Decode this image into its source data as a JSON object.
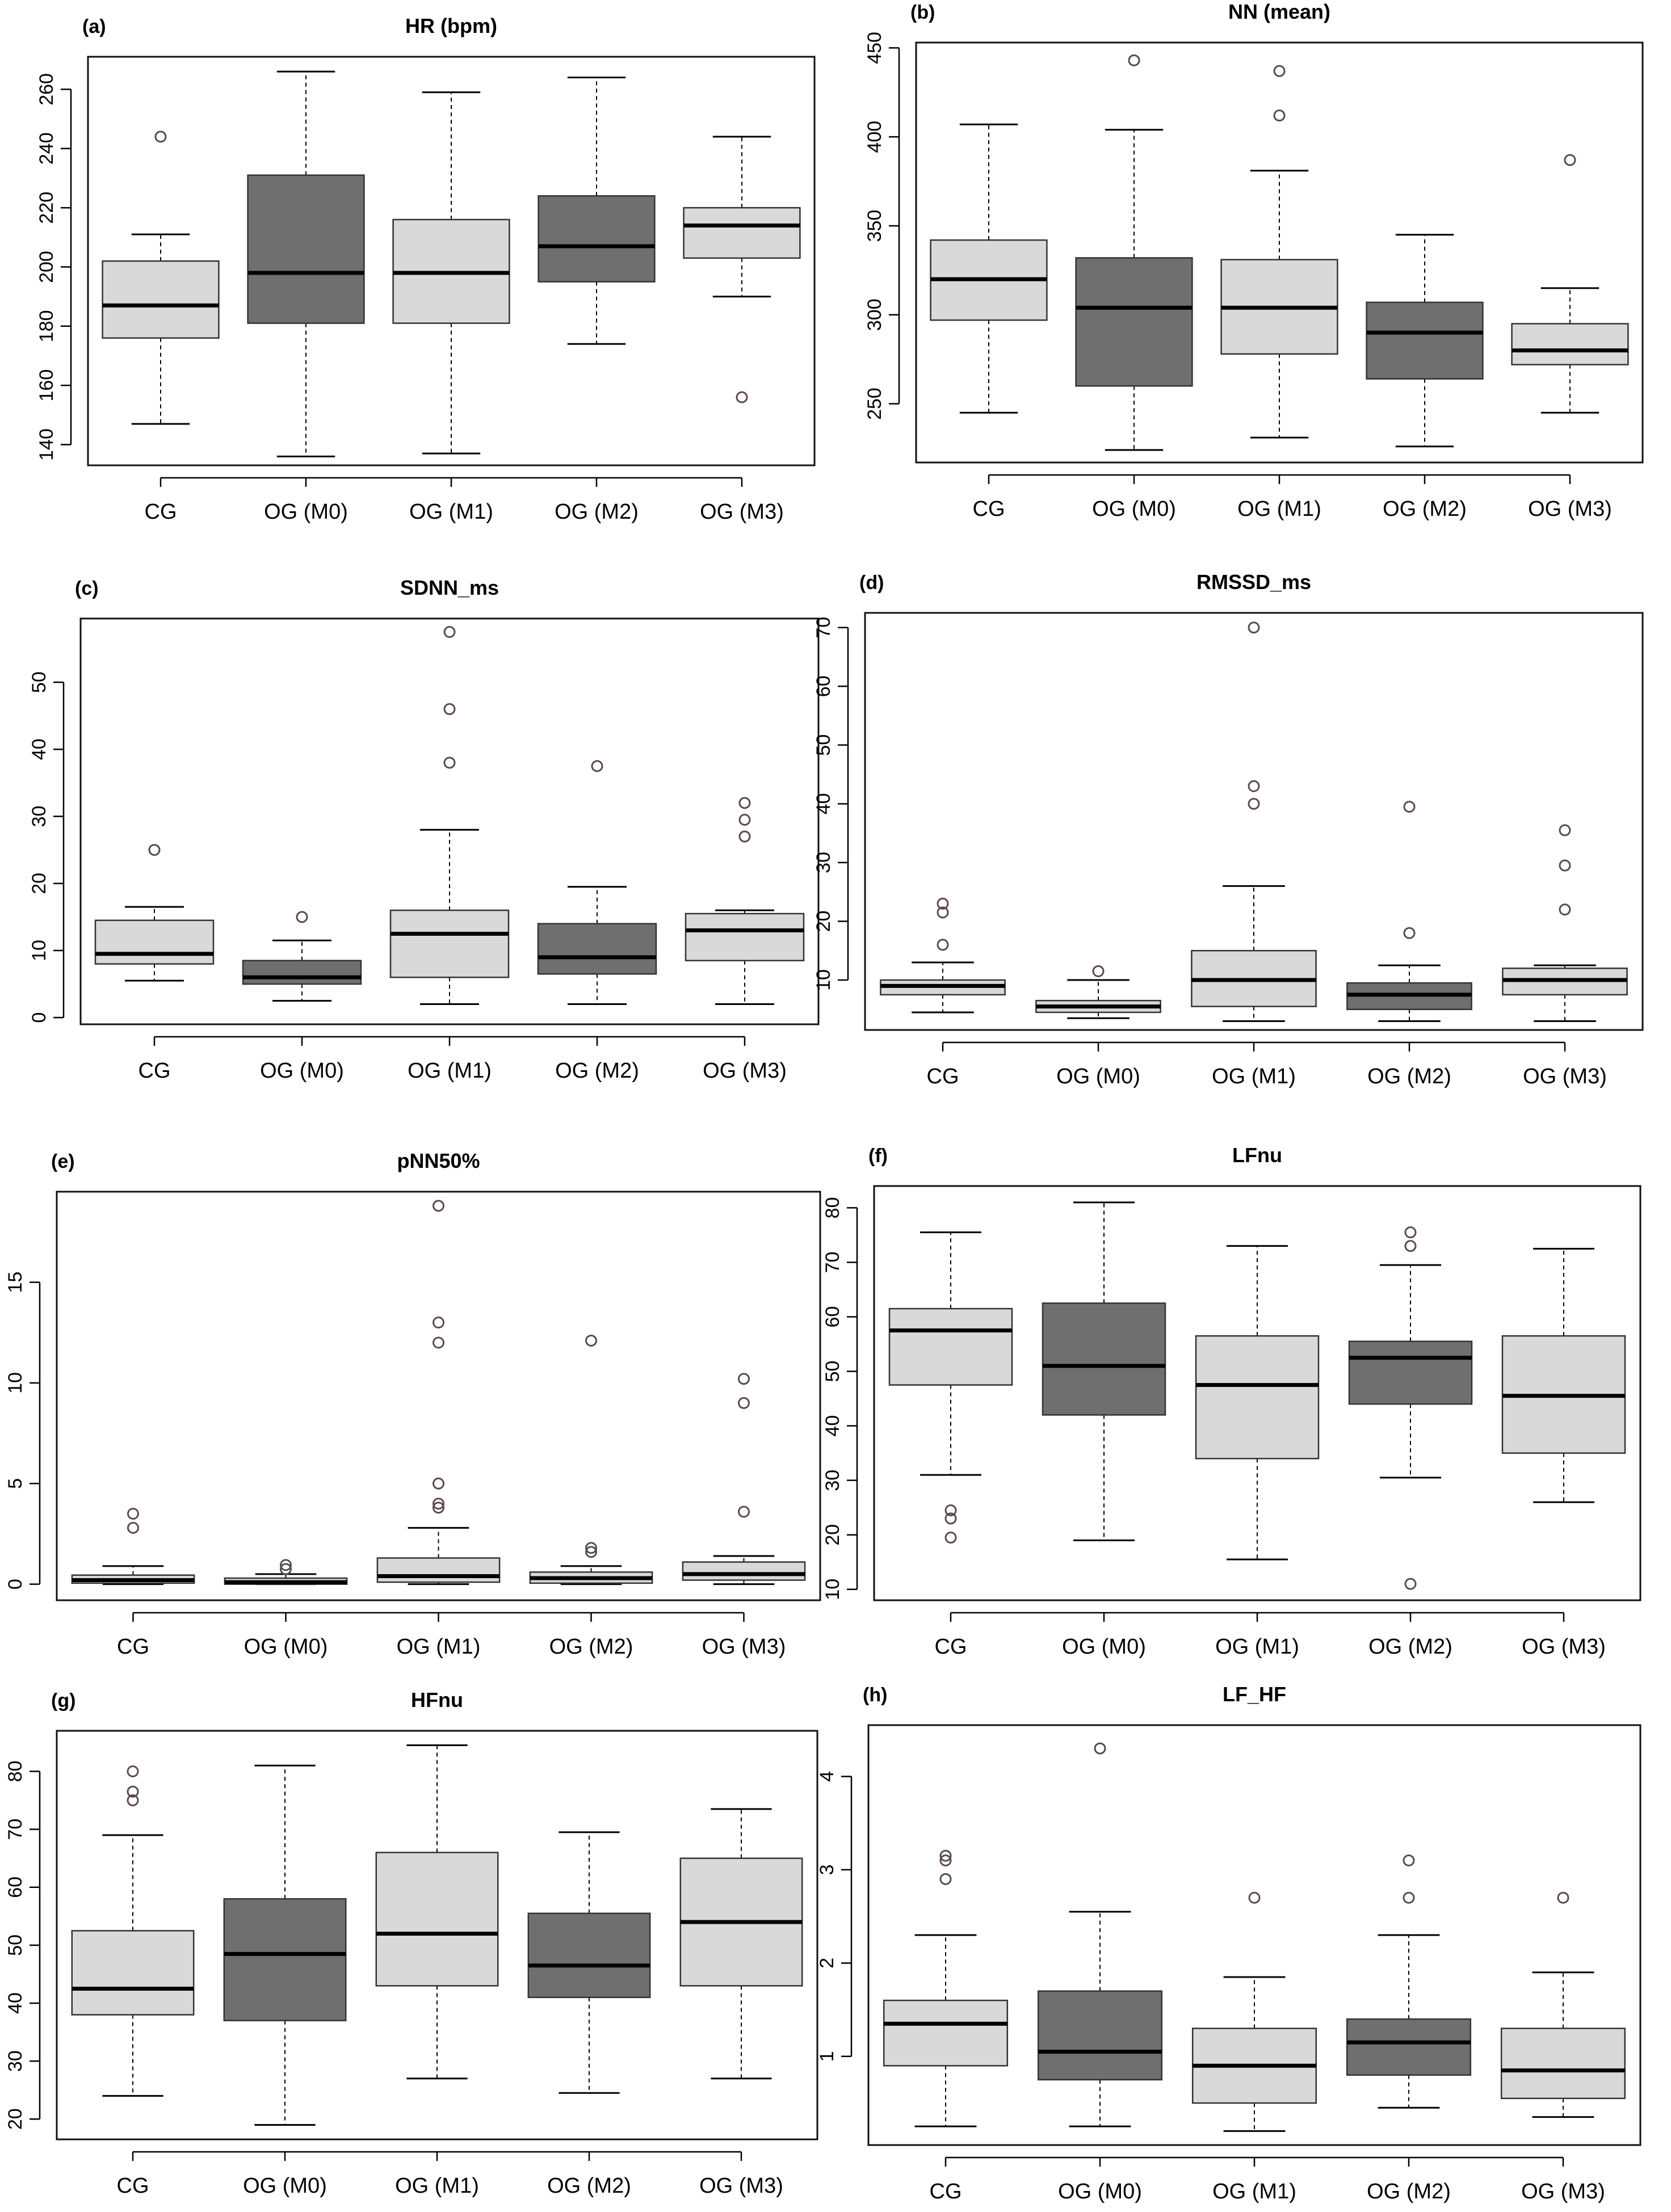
{
  "chart_data": [
    {
      "type": "boxplot",
      "letter": "(a)",
      "title": "HR (bpm)",
      "xlabel": "",
      "ylabel": "",
      "categories": [
        "CG",
        "OG (M0)",
        "OG (M1)",
        "OG (M2)",
        "OG (M3)"
      ],
      "box_shading": [
        "light",
        "dark",
        "light",
        "dark",
        "light"
      ],
      "ylim": [
        133,
        271
      ],
      "yticks": [
        140,
        160,
        180,
        200,
        220,
        240,
        260
      ],
      "boxes": [
        {
          "whisker_low": 147,
          "q1": 176,
          "median": 187,
          "q3": 202,
          "whisker_high": 211,
          "outliers": [
            244
          ]
        },
        {
          "whisker_low": 136,
          "q1": 181,
          "median": 198,
          "q3": 231,
          "whisker_high": 266,
          "outliers": []
        },
        {
          "whisker_low": 137,
          "q1": 181,
          "median": 198,
          "q3": 216,
          "whisker_high": 259,
          "outliers": []
        },
        {
          "whisker_low": 174,
          "q1": 195,
          "median": 207,
          "q3": 224,
          "whisker_high": 264,
          "outliers": []
        },
        {
          "whisker_low": 190,
          "q1": 203,
          "median": 214,
          "q3": 220,
          "whisker_high": 244,
          "outliers": [
            156
          ]
        }
      ]
    },
    {
      "type": "boxplot",
      "letter": "(b)",
      "title": "NN (mean)",
      "xlabel": "",
      "ylabel": "",
      "categories": [
        "CG",
        "OG (M0)",
        "OG (M1)",
        "OG (M2)",
        "OG (M3)"
      ],
      "box_shading": [
        "light",
        "dark",
        "light",
        "dark",
        "light"
      ],
      "ylim": [
        217,
        453
      ],
      "yticks": [
        250,
        300,
        350,
        400,
        450
      ],
      "boxes": [
        {
          "whisker_low": 245,
          "q1": 297,
          "median": 320,
          "q3": 342,
          "whisker_high": 407,
          "outliers": []
        },
        {
          "whisker_low": 224,
          "q1": 260,
          "median": 304,
          "q3": 332,
          "whisker_high": 404,
          "outliers": [
            443
          ]
        },
        {
          "whisker_low": 231,
          "q1": 278,
          "median": 304,
          "q3": 331,
          "whisker_high": 381,
          "outliers": [
            412,
            437
          ]
        },
        {
          "whisker_low": 226,
          "q1": 264,
          "median": 290,
          "q3": 307,
          "whisker_high": 345,
          "outliers": []
        },
        {
          "whisker_low": 245,
          "q1": 272,
          "median": 280,
          "q3": 295,
          "whisker_high": 315,
          "outliers": [
            387
          ]
        }
      ]
    },
    {
      "type": "boxplot",
      "letter": "(c)",
      "title": "SDNN_ms",
      "xlabel": "",
      "ylabel": "",
      "categories": [
        "CG",
        "OG (M0)",
        "OG (M1)",
        "OG (M2)",
        "OG (M3)"
      ],
      "box_shading": [
        "light",
        "dark",
        "light",
        "dark",
        "light"
      ],
      "ylim": [
        -1,
        59.5
      ],
      "yticks": [
        0,
        10,
        20,
        30,
        40,
        50
      ],
      "boxes": [
        {
          "whisker_low": 5.5,
          "q1": 8,
          "median": 9.5,
          "q3": 14.5,
          "whisker_high": 16.5,
          "outliers": [
            25
          ]
        },
        {
          "whisker_low": 2.5,
          "q1": 5,
          "median": 6,
          "q3": 8.5,
          "whisker_high": 11.5,
          "outliers": [
            15
          ]
        },
        {
          "whisker_low": 2,
          "q1": 6,
          "median": 12.5,
          "q3": 16,
          "whisker_high": 28,
          "outliers": [
            38,
            46,
            57.5
          ]
        },
        {
          "whisker_low": 2,
          "q1": 6.5,
          "median": 9,
          "q3": 14,
          "whisker_high": 19.5,
          "outliers": [
            37.5
          ]
        },
        {
          "whisker_low": 2,
          "q1": 8.5,
          "median": 13,
          "q3": 15.5,
          "whisker_high": 16,
          "outliers": [
            27,
            29.5,
            32
          ]
        }
      ]
    },
    {
      "type": "boxplot",
      "letter": "(d)",
      "title": "RMSSD_ms",
      "xlabel": "",
      "ylabel": "",
      "categories": [
        "CG",
        "OG (M0)",
        "OG (M1)",
        "OG (M2)",
        "OG (M3)"
      ],
      "box_shading": [
        "light",
        "light",
        "light",
        "dark",
        "light"
      ],
      "ylim": [
        1.5,
        72.5
      ],
      "yticks": [
        10,
        20,
        30,
        40,
        50,
        60,
        70
      ],
      "boxes": [
        {
          "whisker_low": 4.5,
          "q1": 7.5,
          "median": 9,
          "q3": 10,
          "whisker_high": 13,
          "outliers": [
            16,
            21.5,
            23
          ]
        },
        {
          "whisker_low": 3.5,
          "q1": 4.5,
          "median": 5.5,
          "q3": 6.5,
          "whisker_high": 10,
          "outliers": [
            11.5
          ]
        },
        {
          "whisker_low": 3,
          "q1": 5.5,
          "median": 10,
          "q3": 15,
          "whisker_high": 26,
          "outliers": [
            40,
            43,
            70
          ]
        },
        {
          "whisker_low": 3,
          "q1": 5,
          "median": 7.5,
          "q3": 9.5,
          "whisker_high": 12.5,
          "outliers": [
            18,
            39.5
          ]
        },
        {
          "whisker_low": 3,
          "q1": 7.5,
          "median": 10,
          "q3": 12,
          "whisker_high": 12.5,
          "outliers": [
            22,
            29.5,
            35.5
          ]
        }
      ]
    },
    {
      "type": "boxplot",
      "letter": "(e)",
      "title": "pNN50%",
      "xlabel": "",
      "ylabel": "",
      "categories": [
        "CG",
        "OG (M0)",
        "OG (M1)",
        "OG (M2)",
        "OG (M3)"
      ],
      "box_shading": [
        "light",
        "light",
        "light",
        "light",
        "light"
      ],
      "ylim": [
        -0.8,
        19.5
      ],
      "yticks": [
        0,
        5,
        10,
        15
      ],
      "boxes": [
        {
          "whisker_low": 0,
          "q1": 0.05,
          "median": 0.2,
          "q3": 0.45,
          "whisker_high": 0.9,
          "outliers": [
            2.8,
            3.5
          ]
        },
        {
          "whisker_low": 0,
          "q1": 0,
          "median": 0.1,
          "q3": 0.3,
          "whisker_high": 0.5,
          "outliers": [
            0.75,
            0.95
          ]
        },
        {
          "whisker_low": 0,
          "q1": 0.1,
          "median": 0.4,
          "q3": 1.3,
          "whisker_high": 2.8,
          "outliers": [
            3.8,
            4.0,
            5.0,
            12.0,
            13.0,
            18.8
          ]
        },
        {
          "whisker_low": 0,
          "q1": 0.05,
          "median": 0.3,
          "q3": 0.6,
          "whisker_high": 0.9,
          "outliers": [
            1.6,
            1.8,
            12.1
          ]
        },
        {
          "whisker_low": 0,
          "q1": 0.2,
          "median": 0.5,
          "q3": 1.1,
          "whisker_high": 1.4,
          "outliers": [
            3.6,
            9.0,
            10.2
          ]
        }
      ]
    },
    {
      "type": "boxplot",
      "letter": "(f)",
      "title": "LFnu",
      "xlabel": "",
      "ylabel": "",
      "categories": [
        "CG",
        "OG (M0)",
        "OG (M1)",
        "OG (M2)",
        "OG (M3)"
      ],
      "box_shading": [
        "light",
        "dark",
        "light",
        "dark",
        "light"
      ],
      "ylim": [
        8,
        84
      ],
      "yticks": [
        10,
        20,
        30,
        40,
        50,
        60,
        70,
        80
      ],
      "boxes": [
        {
          "whisker_low": 31,
          "q1": 47.5,
          "median": 57.5,
          "q3": 61.5,
          "whisker_high": 75.5,
          "outliers": [
            19.5,
            23,
            24.5
          ]
        },
        {
          "whisker_low": 19,
          "q1": 42,
          "median": 51,
          "q3": 62.5,
          "whisker_high": 81,
          "outliers": []
        },
        {
          "whisker_low": 15.5,
          "q1": 34,
          "median": 47.5,
          "q3": 56.5,
          "whisker_high": 73,
          "outliers": []
        },
        {
          "whisker_low": 30.5,
          "q1": 44,
          "median": 52.5,
          "q3": 55.5,
          "whisker_high": 69.5,
          "outliers": [
            11,
            73,
            75.5
          ]
        },
        {
          "whisker_low": 26,
          "q1": 35,
          "median": 45.5,
          "q3": 56.5,
          "whisker_high": 72.5,
          "outliers": []
        }
      ]
    },
    {
      "type": "boxplot",
      "letter": "(g)",
      "title": "HFnu",
      "xlabel": "",
      "ylabel": "",
      "categories": [
        "CG",
        "OG (M0)",
        "OG (M1)",
        "OG (M2)",
        "OG (M3)"
      ],
      "box_shading": [
        "light",
        "dark",
        "light",
        "dark",
        "light"
      ],
      "ylim": [
        16.5,
        87
      ],
      "yticks": [
        20,
        30,
        40,
        50,
        60,
        70,
        80
      ],
      "boxes": [
        {
          "whisker_low": 24,
          "q1": 38,
          "median": 42.5,
          "q3": 52.5,
          "whisker_high": 69,
          "outliers": [
            75,
            76.5,
            80
          ]
        },
        {
          "whisker_low": 19,
          "q1": 37,
          "median": 48.5,
          "q3": 58,
          "whisker_high": 81,
          "outliers": []
        },
        {
          "whisker_low": 27,
          "q1": 43,
          "median": 52,
          "q3": 66,
          "whisker_high": 84.5,
          "outliers": []
        },
        {
          "whisker_low": 24.5,
          "q1": 41,
          "median": 46.5,
          "q3": 55.5,
          "whisker_high": 69.5,
          "outliers": []
        },
        {
          "whisker_low": 27,
          "q1": 43,
          "median": 54,
          "q3": 65,
          "whisker_high": 73.5,
          "outliers": []
        }
      ]
    },
    {
      "type": "boxplot",
      "letter": "(h)",
      "title": "LF_HF",
      "xlabel": "",
      "ylabel": "",
      "categories": [
        "CG",
        "OG (M0)",
        "OG (M1)",
        "OG (M2)",
        "OG (M3)"
      ],
      "box_shading": [
        "light",
        "dark",
        "light",
        "dark",
        "light"
      ],
      "ylim": [
        0.05,
        4.55
      ],
      "yticks": [
        1,
        2,
        3,
        4
      ],
      "boxes": [
        {
          "whisker_low": 0.25,
          "q1": 0.9,
          "median": 1.35,
          "q3": 1.6,
          "whisker_high": 2.3,
          "outliers": [
            2.9,
            3.1,
            3.15
          ]
        },
        {
          "whisker_low": 0.25,
          "q1": 0.75,
          "median": 1.05,
          "q3": 1.7,
          "whisker_high": 2.55,
          "outliers": [
            4.3
          ]
        },
        {
          "whisker_low": 0.2,
          "q1": 0.5,
          "median": 0.9,
          "q3": 1.3,
          "whisker_high": 1.85,
          "outliers": [
            2.7
          ]
        },
        {
          "whisker_low": 0.45,
          "q1": 0.8,
          "median": 1.15,
          "q3": 1.4,
          "whisker_high": 2.3,
          "outliers": [
            2.7,
            3.1
          ]
        },
        {
          "whisker_low": 0.35,
          "q1": 0.55,
          "median": 0.85,
          "q3": 1.3,
          "whisker_high": 1.9,
          "outliers": [
            2.7
          ]
        }
      ]
    }
  ],
  "colors": {
    "light_box": "#d9d9d9",
    "dark_box": "#6f6f6f",
    "outline": "#333333",
    "median": "#000000",
    "outlier_stroke": "#5a4a4a",
    "frame": "#111111"
  }
}
